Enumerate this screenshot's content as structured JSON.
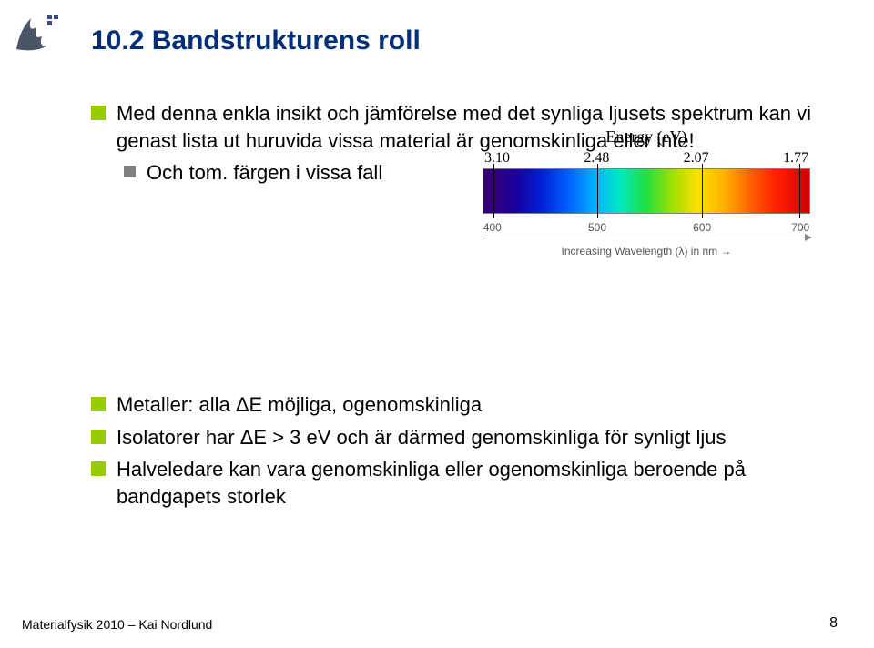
{
  "title": "10.2 Bandstrukturens roll",
  "block1": {
    "b1": "Med denna enkla insikt och jämförelse med det synliga ljusets spektrum kan vi genast lista ut huruvida vissa material är genomskinliga eller inte!",
    "sub1": "Och tom. färgen i vissa fall"
  },
  "spectrum": {
    "energy_label": "Energy (eV)",
    "energy_ticks": [
      "3.10",
      "2.48",
      "2.07",
      "1.77"
    ],
    "tick_positions_pct": [
      3,
      35,
      67,
      97
    ],
    "wave_ticks": [
      {
        "label": "400",
        "pct": 3
      },
      {
        "label": "500",
        "pct": 35
      },
      {
        "label": "600",
        "pct": 67
      },
      {
        "label": "700",
        "pct": 97
      }
    ],
    "wave_label": "Increasing Wavelength (λ) in nm →"
  },
  "block2": {
    "b1": "Metaller: alla ΔE möjliga, ogenomskinliga",
    "b2": "Isolatorer har ΔE > 3 eV och är därmed genomskinliga för synligt ljus",
    "b3": "Halveledare kan vara genomskinliga eller ogenomskinliga beroende på bandgapets storlek"
  },
  "footer": "Materialfysik 2010 – Kai Nordlund",
  "pagenum": "8",
  "colors": {
    "title": "#002e7a",
    "bullet_lg": "#99cc00",
    "bullet_sm": "#808080"
  }
}
